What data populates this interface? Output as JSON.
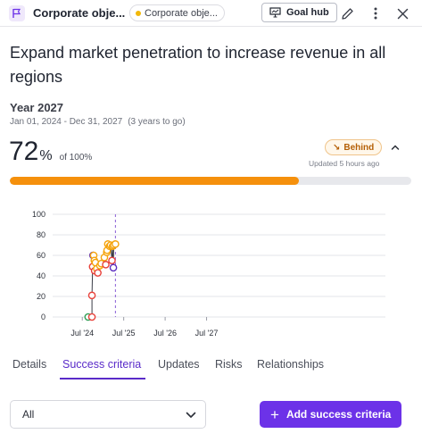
{
  "header": {
    "title": "Corporate obje...",
    "chip_label": "Corporate obje...",
    "goal_hub_label": "Goal hub",
    "icons": {
      "goal": "flag-icon",
      "hub": "presentation-icon",
      "edit": "pencil-icon",
      "more": "more-vertical-icon",
      "close": "close-icon"
    }
  },
  "goal": {
    "title": "Expand market penetration to increase revenue in all regions",
    "period_name": "Year 2027",
    "period_dates": "Jan 01, 2024 - Dec 31, 2027",
    "years_to_go": "(3 years to go)",
    "progress_value": "72",
    "progress_percent_symbol": "%",
    "progress_of": "of 100%",
    "progress_fraction": 0.72,
    "status_label": "Behind",
    "updated": "Updated 5 hours ago"
  },
  "colors": {
    "accent": "#6c32e8",
    "progress_fill": "#f5900c",
    "status_text": "#b45f06",
    "status_bg": "#fff7ea",
    "point_orange": "#f5a30c",
    "point_red": "#e8413a",
    "point_purple": "#5c2fbf",
    "point_green": "#2f9e55"
  },
  "chart_data": {
    "type": "line",
    "title": "",
    "xlabel": "",
    "ylabel": "",
    "ylim": [
      0,
      100
    ],
    "yticks": [
      0,
      20,
      40,
      60,
      80,
      100
    ],
    "xticks": [
      "Jul '24",
      "Jul '25",
      "Jul '26",
      "Jul '27"
    ],
    "xrange_months": [
      0,
      48
    ],
    "today_marker_month": 15.6,
    "grid": "horizontal",
    "series": [
      {
        "points": [
          {
            "m": 7.7,
            "y": 0,
            "c": "green"
          },
          {
            "m": 8.8,
            "y": 0,
            "c": "red"
          },
          {
            "m": 8.8,
            "y": 21,
            "c": "red"
          },
          {
            "m": 9.0,
            "y": 49,
            "c": "red"
          },
          {
            "m": 9.1,
            "y": 60,
            "c": "purple"
          },
          {
            "m": 9.3,
            "y": 60,
            "c": "orange"
          },
          {
            "m": 9.5,
            "y": 55,
            "c": "orange"
          },
          {
            "m": 9.6,
            "y": 45,
            "c": "red"
          },
          {
            "m": 9.8,
            "y": 53,
            "c": "orange"
          },
          {
            "m": 10.2,
            "y": 47,
            "c": "orange"
          },
          {
            "m": 10.5,
            "y": 43,
            "c": "red"
          },
          {
            "m": 11.1,
            "y": 50,
            "c": "orange"
          },
          {
            "m": 11.5,
            "y": 52,
            "c": "orange"
          },
          {
            "m": 12.4,
            "y": 58,
            "c": "orange"
          },
          {
            "m": 12.8,
            "y": 51,
            "c": "red"
          },
          {
            "m": 13.1,
            "y": 63,
            "c": "orange"
          },
          {
            "m": 13.2,
            "y": 65,
            "c": "orange"
          },
          {
            "m": 13.4,
            "y": 71,
            "c": "orange"
          },
          {
            "m": 13.9,
            "y": 69,
            "c": "orange"
          },
          {
            "m": 14.2,
            "y": 70,
            "c": "orange"
          },
          {
            "m": 14.6,
            "y": 55,
            "c": "red"
          },
          {
            "m": 14.8,
            "y": 69,
            "c": "orange"
          },
          {
            "m": 15.0,
            "y": 48,
            "c": "purple"
          },
          {
            "m": 15.1,
            "y": 70,
            "c": "orange"
          },
          {
            "m": 15.6,
            "y": 71,
            "c": "orange"
          }
        ]
      }
    ]
  },
  "tabs": [
    {
      "label": "Details",
      "active": false
    },
    {
      "label": "Success criteria",
      "active": true
    },
    {
      "label": "Updates",
      "active": false
    },
    {
      "label": "Risks",
      "active": false
    },
    {
      "label": "Relationships",
      "active": false
    }
  ],
  "filter": {
    "selected": "All"
  },
  "add_button_label": "Add success criteria"
}
